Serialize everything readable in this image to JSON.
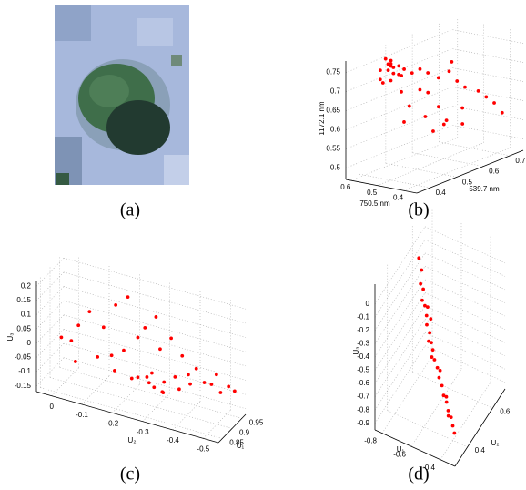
{
  "figure": {
    "panels": [
      {
        "label": "(a)"
      },
      {
        "label": "(b)",
        "x_label": "539.7 nm",
        "y_label": "750.5 nm",
        "z_label": "1172.1 nm",
        "xlim": [
          0.35,
          0.75
        ],
        "xticks": [
          0.4,
          0.5,
          0.6,
          0.7
        ],
        "ylim": [
          0.35,
          0.62
        ],
        "yticks": [
          0.4,
          0.5,
          0.6
        ],
        "zlim": [
          0.47,
          0.78
        ],
        "zticks": [
          0.5,
          0.55,
          0.6,
          0.65,
          0.7,
          0.75
        ],
        "color": "#ff0000",
        "points": [
          [
            0.44,
            0.55,
            0.74
          ],
          [
            0.45,
            0.54,
            0.73
          ],
          [
            0.46,
            0.56,
            0.75
          ],
          [
            0.43,
            0.57,
            0.74
          ],
          [
            0.47,
            0.53,
            0.72
          ],
          [
            0.48,
            0.55,
            0.74
          ],
          [
            0.45,
            0.52,
            0.73
          ],
          [
            0.42,
            0.56,
            0.72
          ],
          [
            0.46,
            0.58,
            0.76
          ],
          [
            0.49,
            0.54,
            0.73
          ],
          [
            0.44,
            0.53,
            0.75
          ],
          [
            0.47,
            0.57,
            0.74
          ],
          [
            0.5,
            0.52,
            0.72
          ],
          [
            0.43,
            0.54,
            0.76
          ],
          [
            0.48,
            0.58,
            0.75
          ],
          [
            0.45,
            0.55,
            0.71
          ],
          [
            0.51,
            0.5,
            0.73
          ],
          [
            0.52,
            0.48,
            0.72
          ],
          [
            0.55,
            0.47,
            0.7
          ],
          [
            0.5,
            0.49,
            0.68
          ],
          [
            0.58,
            0.46,
            0.71
          ],
          [
            0.54,
            0.5,
            0.66
          ],
          [
            0.6,
            0.45,
            0.68
          ],
          [
            0.48,
            0.51,
            0.64
          ],
          [
            0.62,
            0.44,
            0.66
          ],
          [
            0.56,
            0.48,
            0.62
          ],
          [
            0.66,
            0.43,
            0.64
          ],
          [
            0.53,
            0.5,
            0.6
          ],
          [
            0.63,
            0.46,
            0.6
          ],
          [
            0.68,
            0.42,
            0.62
          ],
          [
            0.58,
            0.47,
            0.58
          ],
          [
            0.7,
            0.41,
            0.6
          ],
          [
            0.47,
            0.52,
            0.6
          ],
          [
            0.6,
            0.5,
            0.56
          ],
          [
            0.72,
            0.4,
            0.57
          ],
          [
            0.52,
            0.46,
            0.57
          ],
          [
            0.65,
            0.48,
            0.55
          ],
          [
            0.45,
            0.58,
            0.7
          ],
          [
            0.44,
            0.5,
            0.69
          ],
          [
            0.57,
            0.44,
            0.74
          ]
        ]
      },
      {
        "label": "(c)",
        "x_label": "U₁",
        "y_label": "U₂",
        "z_label": "U₃",
        "xlim": [
          0.83,
          0.97
        ],
        "xticks": [
          0.85,
          0.9,
          0.95
        ],
        "ylim": [
          0.05,
          -0.55
        ],
        "yticks": [
          0,
          -0.1,
          -0.2,
          -0.3,
          -0.4,
          -0.5
        ],
        "zlim": [
          -0.17,
          0.22
        ],
        "zticks": [
          -0.15,
          -0.1,
          -0.05,
          0,
          0.05,
          0.1,
          0.15,
          0.2
        ],
        "color": "#ff0000",
        "points": [
          [
            0.93,
            -0.25,
            -0.1
          ],
          [
            0.94,
            -0.3,
            -0.11
          ],
          [
            0.92,
            -0.28,
            -0.12
          ],
          [
            0.95,
            -0.33,
            -0.09
          ],
          [
            0.93,
            -0.22,
            -0.11
          ],
          [
            0.94,
            -0.35,
            -0.12
          ],
          [
            0.91,
            -0.27,
            -0.1
          ],
          [
            0.95,
            -0.38,
            -0.1
          ],
          [
            0.92,
            -0.31,
            -0.13
          ],
          [
            0.93,
            -0.2,
            -0.12
          ],
          [
            0.96,
            -0.42,
            -0.09
          ],
          [
            0.94,
            -0.26,
            -0.09
          ],
          [
            0.9,
            -0.32,
            -0.11
          ],
          [
            0.95,
            -0.45,
            -0.08
          ],
          [
            0.96,
            -0.5,
            -0.08
          ],
          [
            0.95,
            -0.48,
            -0.1
          ],
          [
            0.96,
            -0.52,
            -0.09
          ],
          [
            0.92,
            -0.15,
            -0.1
          ],
          [
            0.91,
            -0.1,
            -0.06
          ],
          [
            0.92,
            -0.18,
            -0.02
          ],
          [
            0.93,
            -0.22,
            0.03
          ],
          [
            0.91,
            -0.12,
            0.05
          ],
          [
            0.92,
            -0.25,
            0.08
          ],
          [
            0.9,
            -0.08,
            0.1
          ],
          [
            0.93,
            -0.28,
            0.12
          ],
          [
            0.91,
            -0.16,
            0.14
          ],
          [
            0.89,
            -0.05,
            0.05
          ],
          [
            0.92,
            -0.3,
            0.02
          ],
          [
            0.94,
            -0.36,
            0.0
          ],
          [
            0.95,
            -0.4,
            -0.04
          ],
          [
            0.9,
            -0.02,
            -0.02
          ],
          [
            0.88,
            0.0,
            0.0
          ],
          [
            0.91,
            -0.2,
            0.18
          ],
          [
            0.93,
            -0.33,
            0.06
          ],
          [
            0.94,
            -0.38,
            -0.06
          ],
          [
            0.89,
            -0.04,
            -0.08
          ],
          [
            0.92,
            -0.14,
            -0.05
          ],
          [
            0.96,
            -0.46,
            -0.05
          ]
        ]
      },
      {
        "label": "(d)",
        "x_label": "U₁",
        "y_label": "U₂",
        "z_label": "U₃",
        "xlim": [
          -0.85,
          -0.3
        ],
        "xticks": [
          -0.8,
          -0.6,
          -0.4
        ],
        "ylim": [
          0.3,
          0.7
        ],
        "yticks": [
          0.4,
          0.6
        ],
        "zlim": [
          -0.95,
          0.15
        ],
        "zticks": [
          -0.9,
          -0.8,
          -0.7,
          -0.6,
          -0.5,
          -0.4,
          -0.3,
          -0.2,
          -0.1,
          0
        ],
        "color": "#ff0000",
        "points": [
          [
            -0.72,
            0.5,
            0.12
          ],
          [
            -0.71,
            0.51,
            0.02
          ],
          [
            -0.7,
            0.49,
            -0.05
          ],
          [
            -0.69,
            0.5,
            -0.1
          ],
          [
            -0.68,
            0.48,
            -0.15
          ],
          [
            -0.67,
            0.49,
            -0.2
          ],
          [
            -0.65,
            0.48,
            -0.25
          ],
          [
            -0.64,
            0.47,
            -0.3
          ],
          [
            -0.62,
            0.47,
            -0.35
          ],
          [
            -0.6,
            0.46,
            -0.4
          ],
          [
            -0.59,
            0.46,
            -0.45
          ],
          [
            -0.57,
            0.45,
            -0.5
          ],
          [
            -0.55,
            0.45,
            -0.55
          ],
          [
            -0.53,
            0.44,
            -0.6
          ],
          [
            -0.51,
            0.44,
            -0.65
          ],
          [
            -0.49,
            0.43,
            -0.7
          ],
          [
            -0.47,
            0.43,
            -0.74
          ],
          [
            -0.45,
            0.42,
            -0.78
          ],
          [
            -0.43,
            0.42,
            -0.82
          ],
          [
            -0.41,
            0.41,
            -0.86
          ],
          [
            -0.39,
            0.4,
            -0.89
          ],
          [
            -0.66,
            0.5,
            -0.22
          ],
          [
            -0.61,
            0.45,
            -0.38
          ],
          [
            -0.54,
            0.46,
            -0.58
          ],
          [
            -0.48,
            0.44,
            -0.72
          ],
          [
            -0.44,
            0.41,
            -0.8
          ],
          [
            -0.63,
            0.49,
            -0.28
          ],
          [
            -0.58,
            0.44,
            -0.47
          ]
        ]
      }
    ]
  }
}
